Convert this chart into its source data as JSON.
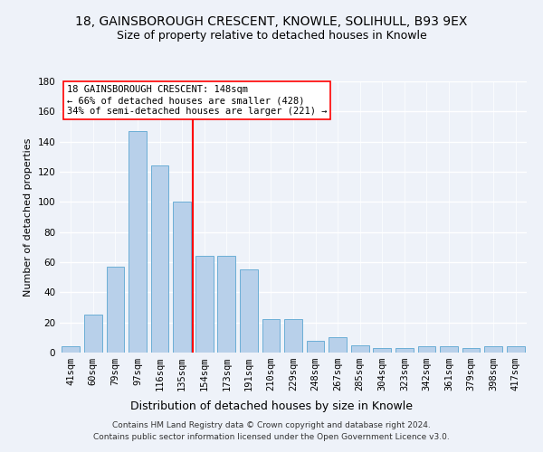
{
  "title1": "18, GAINSBOROUGH CRESCENT, KNOWLE, SOLIHULL, B93 9EX",
  "title2": "Size of property relative to detached houses in Knowle",
  "xlabel": "Distribution of detached houses by size in Knowle",
  "ylabel": "Number of detached properties",
  "categories": [
    "41sqm",
    "60sqm",
    "79sqm",
    "97sqm",
    "116sqm",
    "135sqm",
    "154sqm",
    "173sqm",
    "191sqm",
    "210sqm",
    "229sqm",
    "248sqm",
    "267sqm",
    "285sqm",
    "304sqm",
    "323sqm",
    "342sqm",
    "361sqm",
    "379sqm",
    "398sqm",
    "417sqm"
  ],
  "values": [
    4,
    25,
    57,
    147,
    124,
    100,
    64,
    64,
    55,
    22,
    22,
    8,
    10,
    5,
    3,
    3,
    4,
    4,
    3,
    4,
    4
  ],
  "bar_color": "#b8d0ea",
  "bar_edge_color": "#6baed6",
  "vline_color": "red",
  "vline_pos": 5.5,
  "ylim": [
    0,
    180
  ],
  "yticks": [
    0,
    20,
    40,
    60,
    80,
    100,
    120,
    140,
    160,
    180
  ],
  "annotation_line1": "18 GAINSBOROUGH CRESCENT: 148sqm",
  "annotation_line2": "← 66% of detached houses are smaller (428)",
  "annotation_line3": "34% of semi-detached houses are larger (221) →",
  "footer": "Contains HM Land Registry data © Crown copyright and database right 2024.\nContains public sector information licensed under the Open Government Licence v3.0.",
  "background_color": "#eef2f9",
  "grid_color": "#ffffff",
  "title1_fontsize": 10,
  "title2_fontsize": 9,
  "xlabel_fontsize": 9,
  "ylabel_fontsize": 8,
  "tick_fontsize": 7.5,
  "annot_fontsize": 7.5,
  "footer_fontsize": 6.5
}
